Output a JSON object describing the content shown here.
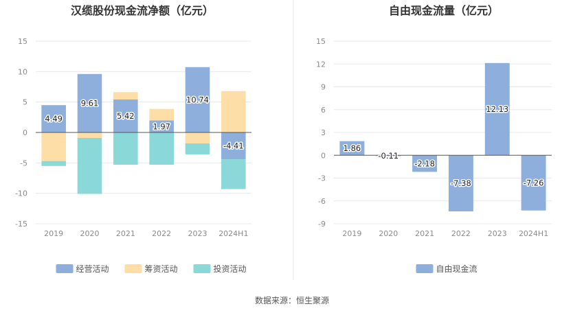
{
  "source_label": "数据来源：恒生聚源",
  "chart_data": [
    {
      "type": "bar",
      "stacked": true,
      "title": "汉缆股份现金流净额（亿元）",
      "categories": [
        "2019",
        "2020",
        "2021",
        "2022",
        "2023",
        "2024H1"
      ],
      "yticks": [
        "15",
        "10",
        "5",
        "0",
        "-5",
        "-10",
        "-15"
      ],
      "ylim": [
        -15,
        15
      ],
      "series": [
        {
          "name": "经营活动",
          "color": "#8eaedb",
          "values": [
            4.49,
            9.61,
            5.42,
            1.97,
            10.74,
            -4.41
          ],
          "labels": [
            "4.49",
            "9.61",
            "5.42",
            "1.97",
            "10.74",
            "-4.41"
          ]
        },
        {
          "name": "筹资活动",
          "color": "#fddea6",
          "values": [
            -4.7,
            -0.9,
            1.2,
            1.9,
            -1.8,
            6.8
          ]
        },
        {
          "name": "投资活动",
          "color": "#8bd8d8",
          "values": [
            -0.8,
            -9.2,
            -5.3,
            -5.3,
            -1.8,
            -4.9
          ]
        }
      ],
      "legend": "bottom",
      "grid": true
    },
    {
      "type": "bar",
      "title": "自由现金流量（亿元）",
      "categories": [
        "2019",
        "2020",
        "2021",
        "2022",
        "2023",
        "2024H1"
      ],
      "yticks": [
        "15",
        "12",
        "9",
        "6",
        "3",
        "0",
        "-3",
        "-6",
        "-9"
      ],
      "ylim": [
        -9,
        15
      ],
      "series": [
        {
          "name": "自由现金流",
          "color": "#8eaedb",
          "values": [
            1.86,
            -0.11,
            -2.18,
            -7.38,
            12.13,
            -7.26
          ],
          "labels": [
            "1.86",
            "-0.11",
            "-2.18",
            "-7.38",
            "12.13",
            "-7.26"
          ]
        }
      ],
      "legend": "bottom",
      "grid": true
    }
  ]
}
